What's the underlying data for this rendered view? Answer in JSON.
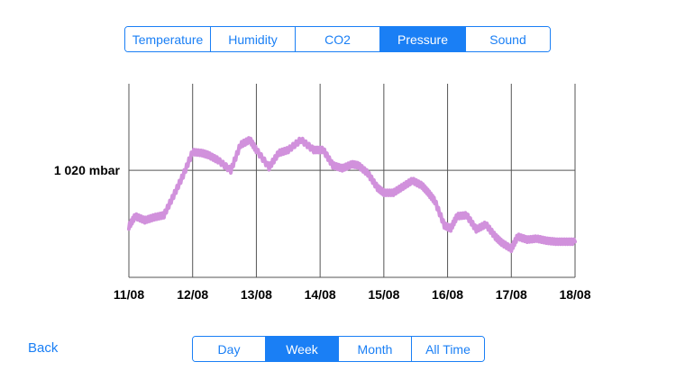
{
  "metric_tabs": {
    "items": [
      "Temperature",
      "Humidity",
      "CO2",
      "Pressure",
      "Sound"
    ],
    "selected": "Pressure"
  },
  "range_tabs": {
    "items": [
      "Day",
      "Week",
      "Month",
      "All Time"
    ],
    "selected": "Week"
  },
  "back_label": "Back",
  "colors": {
    "accent": "#1a7ff5",
    "series": "#d191dc"
  },
  "chart_data": {
    "type": "line",
    "x_ticks": [
      "11/08",
      "12/08",
      "13/08",
      "14/08",
      "15/08",
      "16/08",
      "17/08",
      "18/08"
    ],
    "y_tick_label": "1 020 mbar",
    "y_tick_value": 1020,
    "ylim": [
      1009.5,
      1028.5
    ],
    "grid": true,
    "series": [
      {
        "x": [
          0,
          0.1,
          0.25,
          0.4,
          0.55,
          0.7,
          0.85,
          1.0,
          1.15,
          1.25,
          1.4,
          1.6,
          1.75,
          1.9,
          2.0,
          2.2,
          2.35,
          2.5,
          2.7,
          2.9,
          3.05,
          3.2,
          3.35,
          3.5,
          3.6,
          3.75,
          3.9,
          4.0,
          4.15,
          4.3,
          4.45,
          4.6,
          4.7,
          4.8,
          4.95,
          5.05,
          5.15,
          5.3,
          5.45,
          5.6,
          5.75,
          5.85,
          6.0,
          6.1,
          6.25,
          6.4,
          6.55,
          6.7,
          6.85,
          7.0
        ],
        "y": [
          1014.5,
          1015.5,
          1015.1,
          1015.4,
          1015.6,
          1017.5,
          1019.5,
          1021.8,
          1021.7,
          1021.5,
          1021.0,
          1020.0,
          1022.5,
          1023.0,
          1022.0,
          1020.3,
          1021.7,
          1022.0,
          1023.0,
          1022.0,
          1022.0,
          1020.5,
          1020.2,
          1020.6,
          1020.5,
          1019.7,
          1018.3,
          1017.8,
          1017.8,
          1018.4,
          1019.0,
          1018.5,
          1017.8,
          1017.0,
          1014.6,
          1014.3,
          1015.5,
          1015.6,
          1014.2,
          1014.7,
          1013.5,
          1012.9,
          1012.3,
          1013.5,
          1013.2,
          1013.3,
          1013.1,
          1013.0,
          1013.0,
          1013.0
        ]
      }
    ]
  }
}
